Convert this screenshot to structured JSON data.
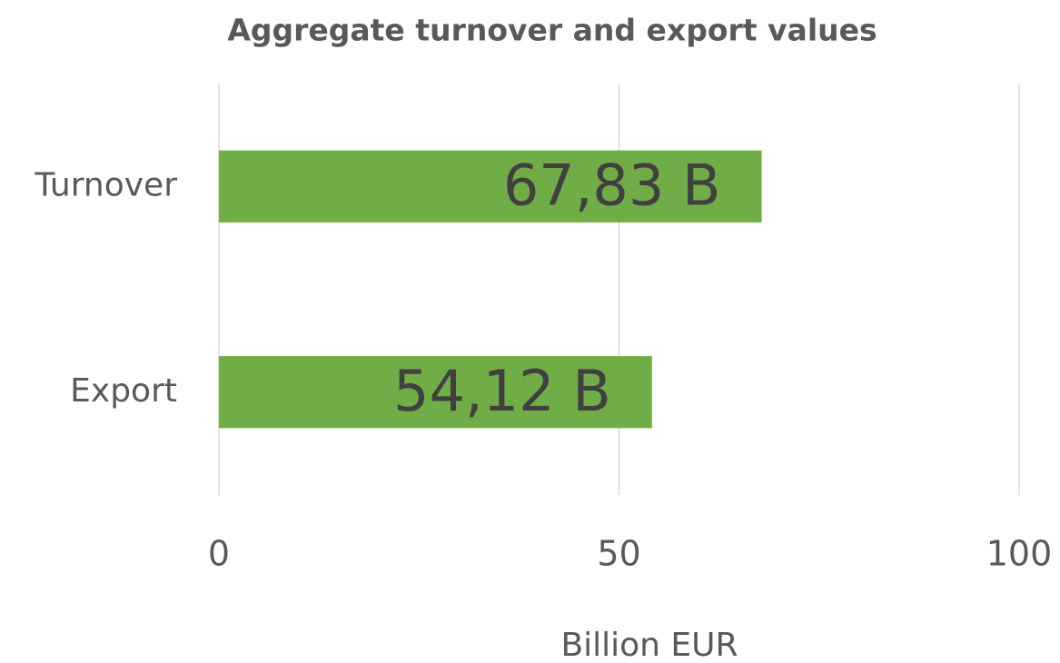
{
  "chart_data": {
    "type": "bar",
    "orientation": "horizontal",
    "title": "Aggregate turnover and export values",
    "categories": [
      "Turnover",
      "Export"
    ],
    "values": [
      67.83,
      54.12
    ],
    "value_labels": [
      "67,83 B",
      "54,12 B"
    ],
    "color": "#70ad47",
    "xlim": [
      0,
      100
    ],
    "xticks": [
      0,
      50,
      100
    ],
    "x_label": "Billion EUR",
    "grid": true
  }
}
